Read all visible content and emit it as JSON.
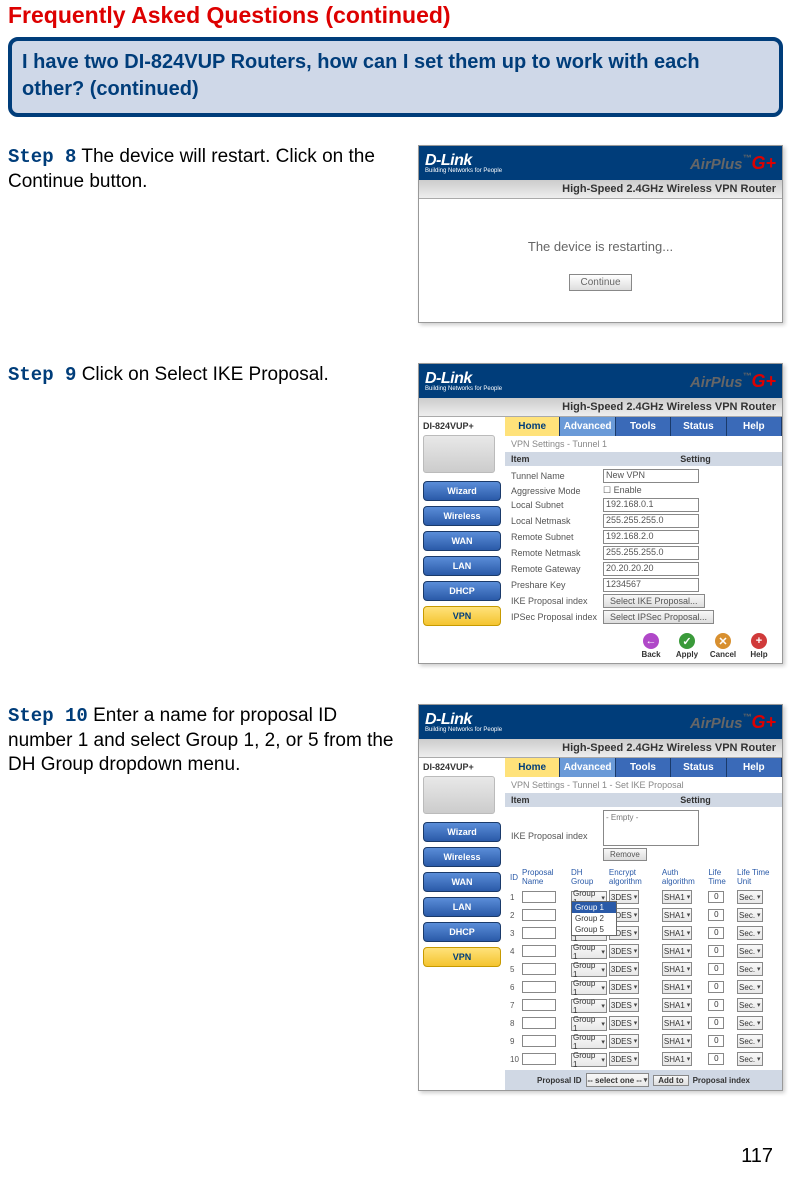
{
  "page_title": "Frequently Asked Questions (continued)",
  "question": "I have two DI-824VUP Routers, how can I set them up to work with each other?   (continued)",
  "page_number": "117",
  "brand": {
    "logo": "D-Link",
    "logo_sub": "Building Networks for People",
    "airplus": "AirPlus",
    "g": "G+",
    "subtitle": "High-Speed 2.4GHz Wireless VPN Router"
  },
  "steps": {
    "s8": {
      "label": "Step 8",
      "text": " The device will restart. Click on the Continue button."
    },
    "s9": {
      "label": "Step 9",
      "text": " Click on Select IKE Proposal."
    },
    "s10": {
      "label": "Step 10",
      "text": " Enter a name for proposal ID number 1 and select Group 1, 2, or 5 from the DH Group dropdown menu."
    }
  },
  "restart": {
    "msg": "The device is restarting...",
    "btn": "Continue"
  },
  "model": "DI-824VUP+",
  "side_nav": [
    "Wizard",
    "Wireless",
    "WAN",
    "LAN",
    "DHCP",
    "VPN"
  ],
  "tabs": [
    "Home",
    "Advanced",
    "Tools",
    "Status",
    "Help"
  ],
  "vpn": {
    "section": "VPN Settings - Tunnel 1",
    "col_item": "Item",
    "col_setting": "Setting",
    "rows": [
      {
        "lbl": "Tunnel Name",
        "val": "New VPN",
        "type": "input"
      },
      {
        "lbl": "Aggressive Mode",
        "val": "Enable",
        "type": "check"
      },
      {
        "lbl": "Local Subnet",
        "val": "192.168.0.1",
        "type": "input"
      },
      {
        "lbl": "Local Netmask",
        "val": "255.255.255.0",
        "type": "input"
      },
      {
        "lbl": "Remote Subnet",
        "val": "192.168.2.0",
        "type": "input"
      },
      {
        "lbl": "Remote Netmask",
        "val": "255.255.255.0",
        "type": "input"
      },
      {
        "lbl": "Remote Gateway",
        "val": "20.20.20.20",
        "type": "input"
      },
      {
        "lbl": "Preshare Key",
        "val": "1234567",
        "type": "input"
      },
      {
        "lbl": "IKE Proposal index",
        "val": "Select IKE Proposal...",
        "type": "button"
      },
      {
        "lbl": "IPSec Proposal index",
        "val": "Select IPSec Proposal...",
        "type": "button"
      }
    ],
    "actions": [
      {
        "name": "Back",
        "cls": "c-back",
        "sym": "←"
      },
      {
        "name": "Apply",
        "cls": "c-apply",
        "sym": "✓"
      },
      {
        "name": "Cancel",
        "cls": "c-cancel",
        "sym": "✕"
      },
      {
        "name": "Help",
        "cls": "c-help",
        "sym": "+"
      }
    ]
  },
  "ike": {
    "section": "VPN Settings - Tunnel 1 - Set IKE Proposal",
    "idx_label": "IKE Proposal index",
    "idx_val": "- Empty -",
    "remove": "Remove",
    "headers": [
      "ID",
      "Proposal Name",
      "DH Group",
      "Encrypt algorithm",
      "Auth algorithm",
      "Life Time",
      "Life Time Unit"
    ],
    "dh_options": [
      "Group 1",
      "Group 2",
      "Group 5"
    ],
    "row_defaults": {
      "dh": "Group 1",
      "enc": "3DES",
      "auth": "SHA1",
      "life": "0",
      "unit": "Sec."
    },
    "row_count": 10,
    "footer_left": "Proposal ID",
    "footer_sel": "-- select one --",
    "footer_btn": "Add to",
    "footer_right": "Proposal index"
  }
}
